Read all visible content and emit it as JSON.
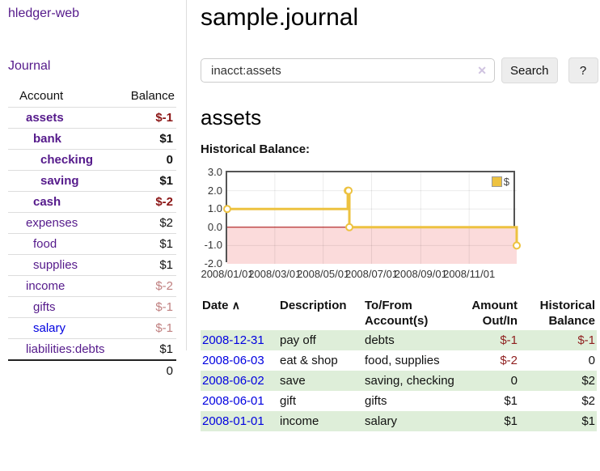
{
  "app": {
    "brand": "hledger-web",
    "nav_journal": "Journal"
  },
  "colors": {
    "link_purple": "#551a8b",
    "link_blue": "#0000e0",
    "negative_strong": "#8b1515",
    "negative_soft": "#c08080",
    "negative_medium": "#8f1f1f",
    "row_green": "#deeed9",
    "series_gold": "#edc240",
    "negative_region_pink": "#fbdbdb",
    "zero_line_red": "#a40000"
  },
  "sidebar": {
    "headers": {
      "account": "Account",
      "balance": "Balance"
    },
    "rows": [
      {
        "account": "assets",
        "balance": "$-1",
        "level": 0,
        "bold": true,
        "balance_tone": "negstrong",
        "link_color": "purple"
      },
      {
        "account": "bank",
        "balance": "$1",
        "level": 1,
        "bold": true,
        "balance_tone": "normal",
        "link_color": "purple"
      },
      {
        "account": "checking",
        "balance": "0",
        "level": 2,
        "bold": true,
        "balance_tone": "normal",
        "link_color": "purple"
      },
      {
        "account": "saving",
        "balance": "$1",
        "level": 2,
        "bold": true,
        "balance_tone": "normal",
        "link_color": "purple"
      },
      {
        "account": "cash",
        "balance": "$-2",
        "level": 1,
        "bold": true,
        "balance_tone": "negstrong",
        "link_color": "purple"
      },
      {
        "account": "expenses",
        "balance": "$2",
        "level": 0,
        "bold": false,
        "balance_tone": "normal",
        "link_color": "purple"
      },
      {
        "account": "food",
        "balance": "$1",
        "level": 1,
        "bold": false,
        "balance_tone": "normal",
        "link_color": "purple"
      },
      {
        "account": "supplies",
        "balance": "$1",
        "level": 1,
        "bold": false,
        "balance_tone": "normal",
        "link_color": "purple"
      },
      {
        "account": "income",
        "balance": "$-2",
        "level": 0,
        "bold": false,
        "balance_tone": "negsoft",
        "link_color": "purple"
      },
      {
        "account": "gifts",
        "balance": "$-1",
        "level": 1,
        "bold": false,
        "balance_tone": "negsoft",
        "link_color": "purple"
      },
      {
        "account": "salary",
        "balance": "$-1",
        "level": 1,
        "bold": false,
        "balance_tone": "negsoft",
        "link_color": "blue"
      },
      {
        "account": "liabilities:debts",
        "balance": "$1",
        "level": 0,
        "bold": false,
        "balance_tone": "normal",
        "link_color": "purple"
      }
    ],
    "total": "0"
  },
  "main": {
    "title": "sample.journal",
    "search": {
      "value": "inacct:assets",
      "clear_icon": "✕",
      "button_label": "Search",
      "help_label": "?"
    },
    "account_heading": "assets",
    "chart_label": "Historical Balance:"
  },
  "chart_data": {
    "type": "line",
    "title": "Historical Balance:",
    "style": "steps",
    "series": [
      {
        "name": "$",
        "color": "#edc240",
        "points": [
          {
            "date": "2008-01-01",
            "value": 1
          },
          {
            "date": "2008-06-01",
            "value": 2
          },
          {
            "date": "2008-06-02",
            "value": 2
          },
          {
            "date": "2008-06-03",
            "value": 0
          },
          {
            "date": "2008-12-31",
            "value": -1
          }
        ]
      }
    ],
    "ylim": [
      -2,
      3
    ],
    "yticks": [
      3.0,
      2.0,
      1.0,
      0.0,
      -1.0,
      -2.0
    ],
    "ytick_labels": [
      "3.0",
      "2.0",
      "1.0",
      "0.0",
      "-1.0",
      "-2.0"
    ],
    "xlim": [
      "2008-01-01",
      "2008-12-31"
    ],
    "xticks": [
      {
        "label": "2008/01/01",
        "date": "2008-01-01"
      },
      {
        "label": "2008/03/01",
        "date": "2008-03-01"
      },
      {
        "label": "2008/05/01",
        "date": "2008-05-01"
      },
      {
        "label": "2008/07/01",
        "date": "2008-07-01"
      },
      {
        "label": "2008/09/01",
        "date": "2008-09-01"
      },
      {
        "label": "2008/11/01",
        "date": "2008-11-01"
      }
    ],
    "grid": true,
    "legend_position": "top-right",
    "negative_region_shaded": true
  },
  "register": {
    "headers": {
      "date": "Date",
      "sort_indicator": "∧",
      "description": "Description",
      "accounts": "To/From Account(s)",
      "amount": "Amount Out/In",
      "balance": "Historical Balance"
    },
    "rows": [
      {
        "date": "2008-12-31",
        "description": "pay off",
        "accounts": "debts",
        "amount": "$-1",
        "balance": "$-1",
        "amount_neg": true,
        "balance_neg": true,
        "shaded": true
      },
      {
        "date": "2008-06-03",
        "description": "eat & shop",
        "accounts": "food, supplies",
        "amount": "$-2",
        "balance": "0",
        "amount_neg": true,
        "balance_neg": false,
        "shaded": false
      },
      {
        "date": "2008-06-02",
        "description": "save",
        "accounts": "saving, checking",
        "amount": "0",
        "balance": "$2",
        "amount_neg": false,
        "balance_neg": false,
        "shaded": true
      },
      {
        "date": "2008-06-01",
        "description": "gift",
        "accounts": "gifts",
        "amount": "$1",
        "balance": "$2",
        "amount_neg": false,
        "balance_neg": false,
        "shaded": false
      },
      {
        "date": "2008-01-01",
        "description": "income",
        "accounts": "salary",
        "amount": "$1",
        "balance": "$1",
        "amount_neg": false,
        "balance_neg": false,
        "shaded": true
      }
    ]
  }
}
